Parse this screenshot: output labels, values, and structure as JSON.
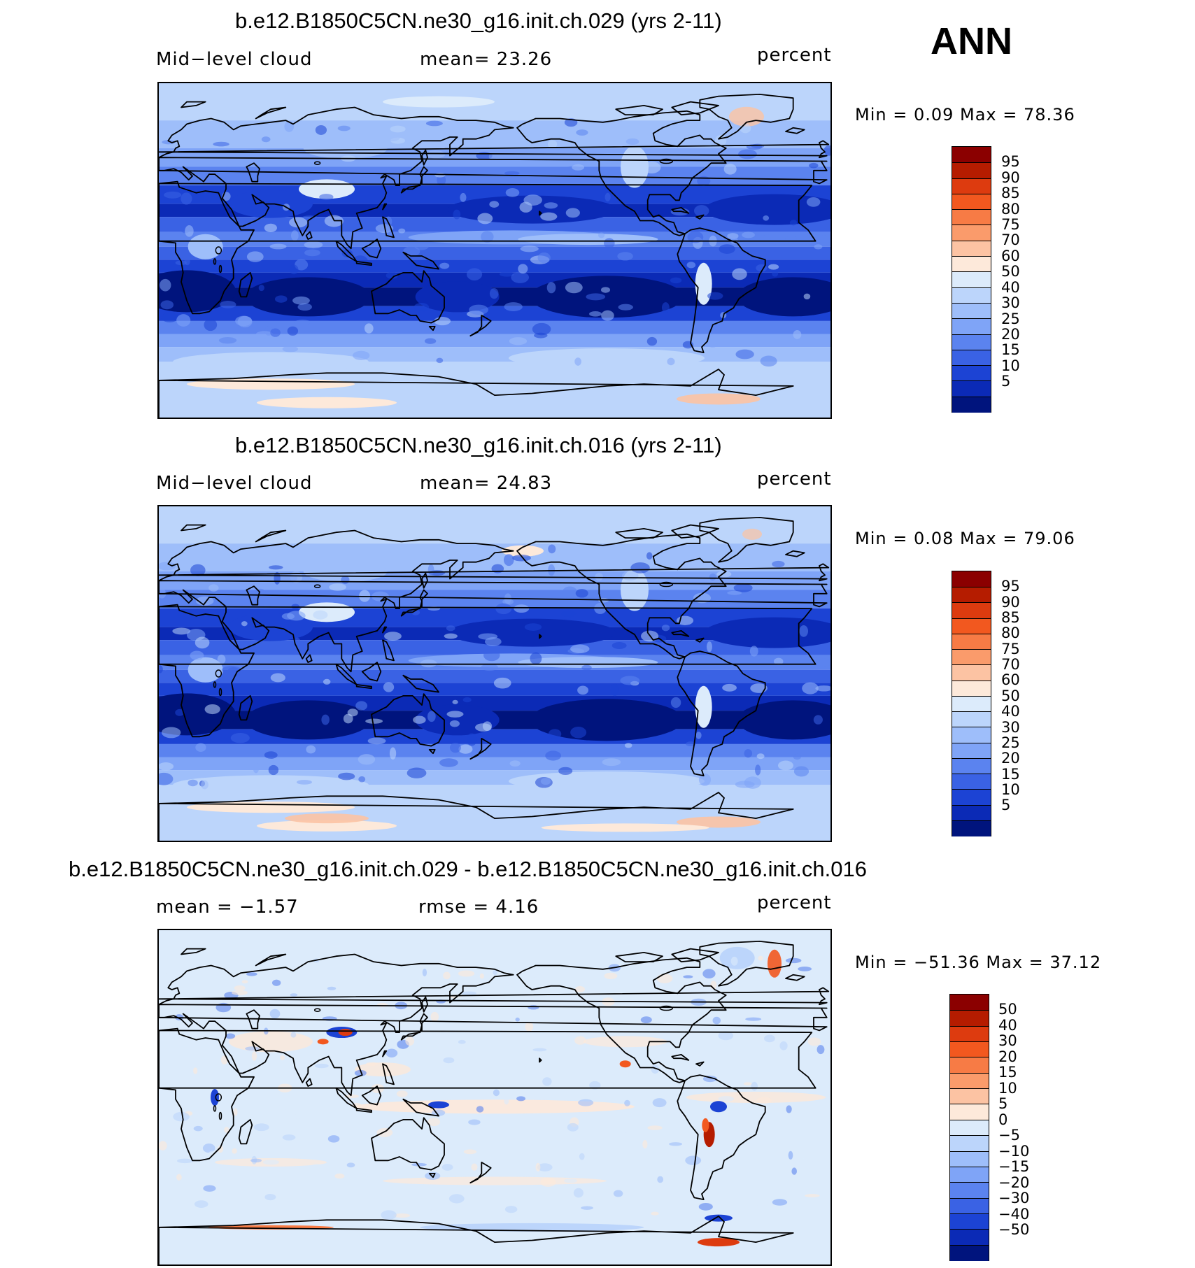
{
  "season": "ANN",
  "panels": [
    {
      "title": "b.e12.B1850C5CN.ne30_g16.init.ch.029 (yrs 2-11)",
      "left_label": "Mid−level  cloud",
      "center_label": "mean=   23.26",
      "units": "percent",
      "minmax": "Min  =     0.09  Max  =    78.36",
      "levels": [
        "95",
        "90",
        "85",
        "80",
        "75",
        "70",
        "60",
        "50",
        "40",
        "30",
        "25",
        "20",
        "15",
        "10",
        "5"
      ],
      "colors": [
        "#8b0000",
        "#b51c00",
        "#dd3b0f",
        "#f2581f",
        "#f77b45",
        "#fa9b6b",
        "#fcc3a3",
        "#fde9da",
        "#dcebfb",
        "#bcd5fb",
        "#9ebefa",
        "#7fa4f7",
        "#5b83ef",
        "#3a62e4",
        "#1c43d4",
        "#0b2ab6",
        "#00147d"
      ],
      "kind": "cloud1"
    },
    {
      "title": "b.e12.B1850C5CN.ne30_g16.init.ch.016 (yrs 2-11)",
      "left_label": "Mid−level  cloud",
      "center_label": "mean=   24.83",
      "units": "percent",
      "minmax": "Min  =     0.08  Max  =    79.06",
      "levels": [
        "95",
        "90",
        "85",
        "80",
        "75",
        "70",
        "60",
        "50",
        "40",
        "30",
        "25",
        "20",
        "15",
        "10",
        "5"
      ],
      "colors": [
        "#8b0000",
        "#b51c00",
        "#dd3b0f",
        "#f2581f",
        "#f77b45",
        "#fa9b6b",
        "#fcc3a3",
        "#fde9da",
        "#dcebfb",
        "#bcd5fb",
        "#9ebefa",
        "#7fa4f7",
        "#5b83ef",
        "#3a62e4",
        "#1c43d4",
        "#0b2ab6",
        "#00147d"
      ],
      "kind": "cloud2"
    },
    {
      "title": "b.e12.B1850C5CN.ne30_g16.init.ch.029 - b.e12.B1850C5CN.ne30_g16.init.ch.016",
      "left_label": "mean  =   −1.57",
      "center_label": "rmse  =     4.16",
      "units": "percent",
      "minmax": "Min  =  −51.36  Max  =    37.12",
      "levels": [
        "50",
        "40",
        "30",
        "20",
        "15",
        "10",
        "5",
        "0",
        "−5",
        "−10",
        "−15",
        "−20",
        "−30",
        "−40",
        "−50"
      ],
      "colors": [
        "#8b0000",
        "#b51c00",
        "#dd3b0f",
        "#f2581f",
        "#f77b45",
        "#fa9b6b",
        "#fcc3a3",
        "#fde9da",
        "#dcebfb",
        "#bcd5fb",
        "#9ebefa",
        "#7fa4f7",
        "#5b83ef",
        "#3a62e4",
        "#1c43d4",
        "#0b2ab6",
        "#00147d"
      ],
      "kind": "diff"
    }
  ]
}
